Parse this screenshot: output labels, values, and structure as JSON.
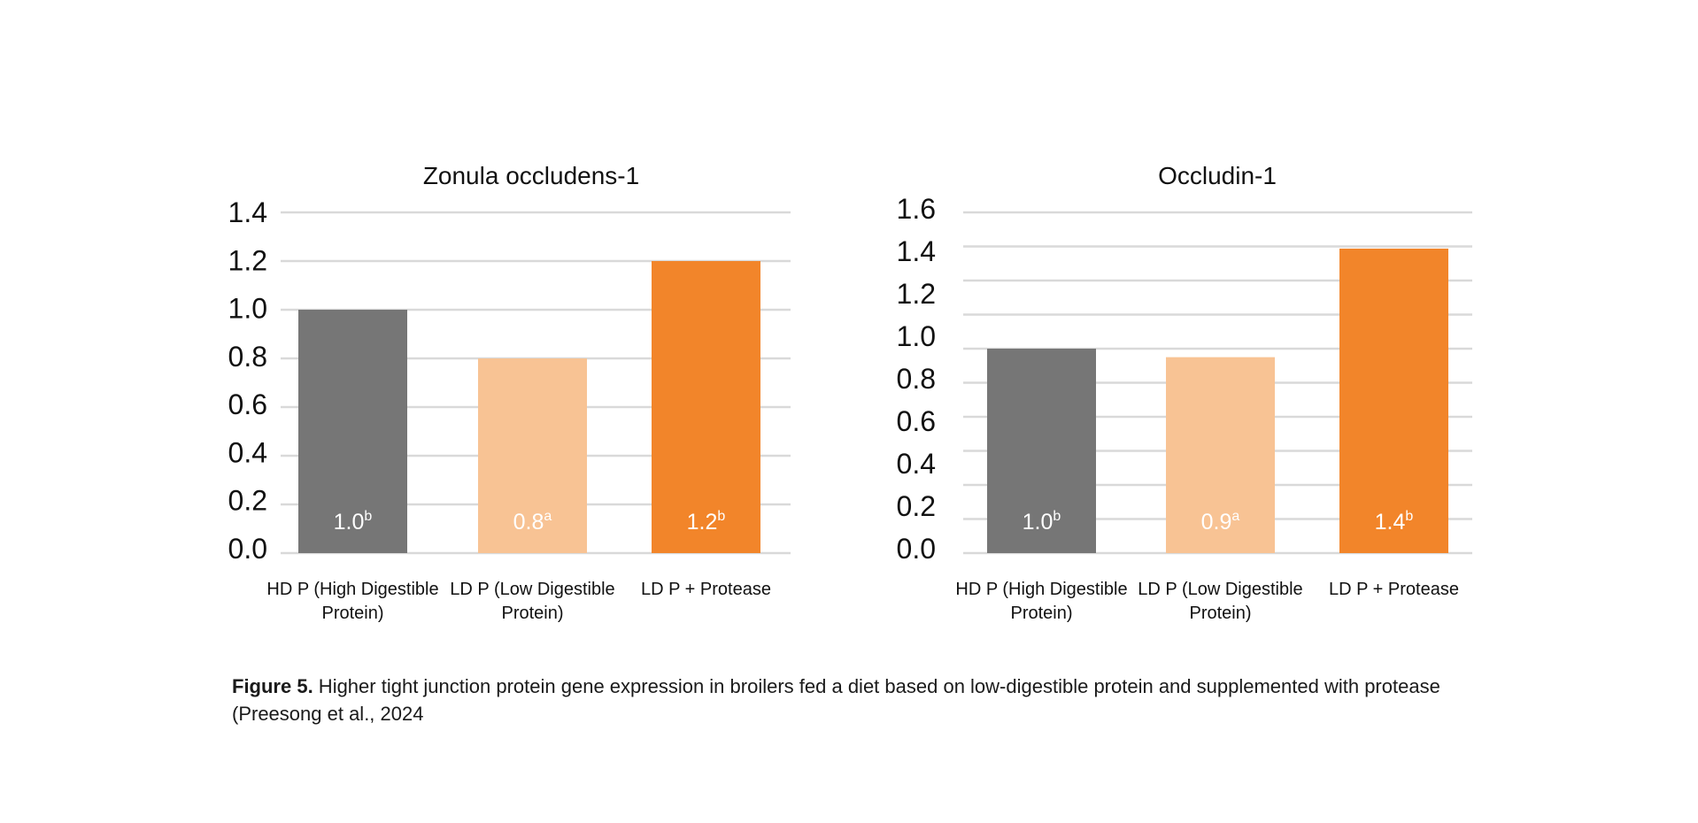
{
  "chart_data": [
    {
      "type": "bar",
      "title": "Zonula occludens-1",
      "xlabel": "",
      "ylabel": "",
      "ylim": [
        0,
        1.4
      ],
      "yticks": [
        "0.0",
        "0.2",
        "0.4",
        "0.6",
        "0.8",
        "1.0",
        "1.2",
        "1.4"
      ],
      "gridlines": 7,
      "grid": true,
      "categories": [
        [
          "HD P (High Digestible",
          "Protein)"
        ],
        [
          "LD P (Low Digestible",
          "Protein)"
        ],
        [
          "LD P + Protease"
        ]
      ],
      "values": [
        1.0,
        0.8,
        1.2
      ],
      "data_labels": [
        {
          "value": "1.0",
          "sup": "b"
        },
        {
          "value": "0.8",
          "sup": "a"
        },
        {
          "value": "1.2",
          "sup": "b"
        }
      ],
      "colors": [
        "#767676",
        "#F8C394",
        "#F2852A"
      ]
    },
    {
      "type": "bar",
      "title": "Occludin-1",
      "xlabel": "",
      "ylabel": "",
      "ylim": [
        0,
        1.6
      ],
      "yticks": [
        "0.0",
        "0.2",
        "0.4",
        "0.6",
        "0.8",
        "1.0",
        "1.2",
        "1.4",
        "1.6"
      ],
      "gridlines": 10,
      "grid": true,
      "categories": [
        [
          "HD P (High Digestible",
          "Protein)"
        ],
        [
          "LD P (Low Digestible",
          "Protein)"
        ],
        [
          "LD P + Protease"
        ]
      ],
      "values": [
        0.96,
        0.92,
        1.43
      ],
      "data_labels": [
        {
          "value": "1.0",
          "sup": "b"
        },
        {
          "value": "0.9",
          "sup": "a"
        },
        {
          "value": "1.4",
          "sup": "b"
        }
      ],
      "colors": [
        "#767676",
        "#F8C394",
        "#F2852A"
      ]
    }
  ],
  "caption": {
    "label": "Figure 5.",
    "text": " Higher tight junction protein gene expression in broilers fed a diet based on low-digestible protein and supplemented with protease (Preesong et al., 2024"
  },
  "colors": {
    "grid": "#D9D9D9",
    "label_text": "#FFFFFF"
  }
}
